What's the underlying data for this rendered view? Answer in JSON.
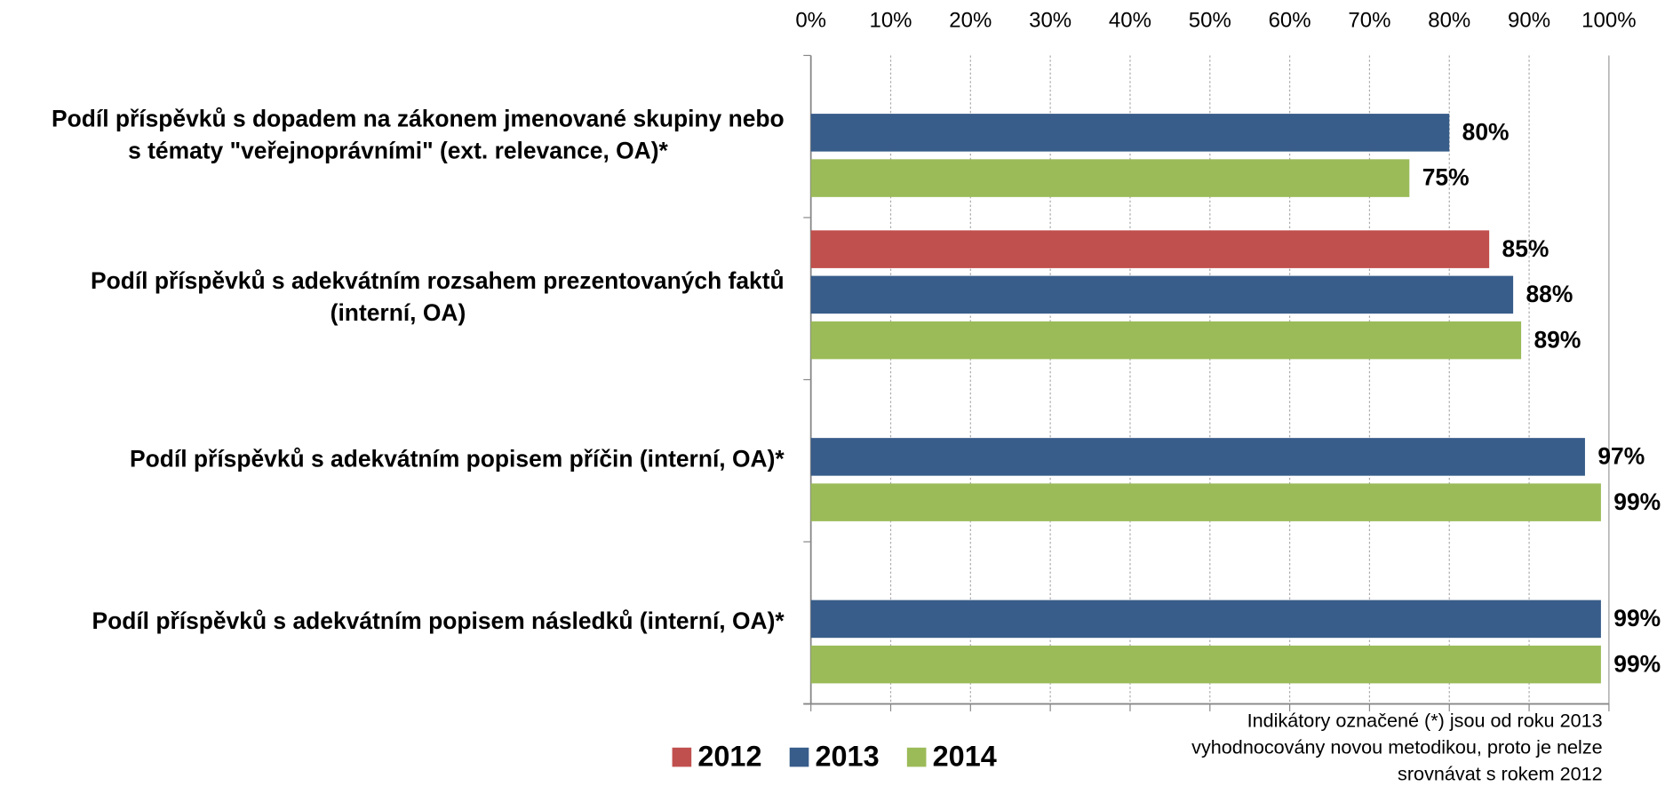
{
  "chart_data": {
    "type": "bar",
    "orientation": "horizontal",
    "categories": [
      [
        "Podíl příspěvků s dopadem na zákonem jmenované skupiny nebo",
        "s tématy \"veřejnoprávními\" (ext. relevance, OA)*"
      ],
      [
        "Podíl příspěvků s adekvátním rozsahem prezentovaných faktů",
        "(interní, OA)"
      ],
      [
        "Podíl příspěvků s adekvátním popisem příčin (interní, OA)*"
      ],
      [
        "Podíl příspěvků s adekvátním popisem následků (interní, OA)*"
      ]
    ],
    "series": [
      {
        "name": "2012",
        "color": "#c0504d",
        "values": [
          null,
          85,
          null,
          null
        ],
        "value_labels": [
          null,
          "85%",
          null,
          null
        ]
      },
      {
        "name": "2013",
        "color": "#385d8a",
        "values": [
          80,
          88,
          97,
          99
        ],
        "value_labels": [
          "80%",
          "88%",
          "97%",
          "99%"
        ]
      },
      {
        "name": "2014",
        "color": "#9bbb59",
        "values": [
          75,
          89,
          99,
          99
        ],
        "value_labels": [
          "75%",
          "89%",
          "99%",
          "99%"
        ]
      }
    ],
    "xlim": [
      0,
      100
    ],
    "xticks": [
      {
        "value": 0,
        "label": "0%"
      },
      {
        "value": 10,
        "label": "10%"
      },
      {
        "value": 20,
        "label": "20%"
      },
      {
        "value": 30,
        "label": "30%"
      },
      {
        "value": 40,
        "label": "40%"
      },
      {
        "value": 50,
        "label": "50%"
      },
      {
        "value": 60,
        "label": "60%"
      },
      {
        "value": 70,
        "label": "70%"
      },
      {
        "value": 80,
        "label": "80%"
      },
      {
        "value": 90,
        "label": "90%"
      },
      {
        "value": 100,
        "label": "100%"
      }
    ],
    "grid": true,
    "legend": "bottom",
    "note": [
      "Indikátory označené (*) jsou od roku 2013",
      "vyhodnocovány  novou metodikou, proto je nelze",
      "srovnávat s rokem 2012"
    ]
  }
}
